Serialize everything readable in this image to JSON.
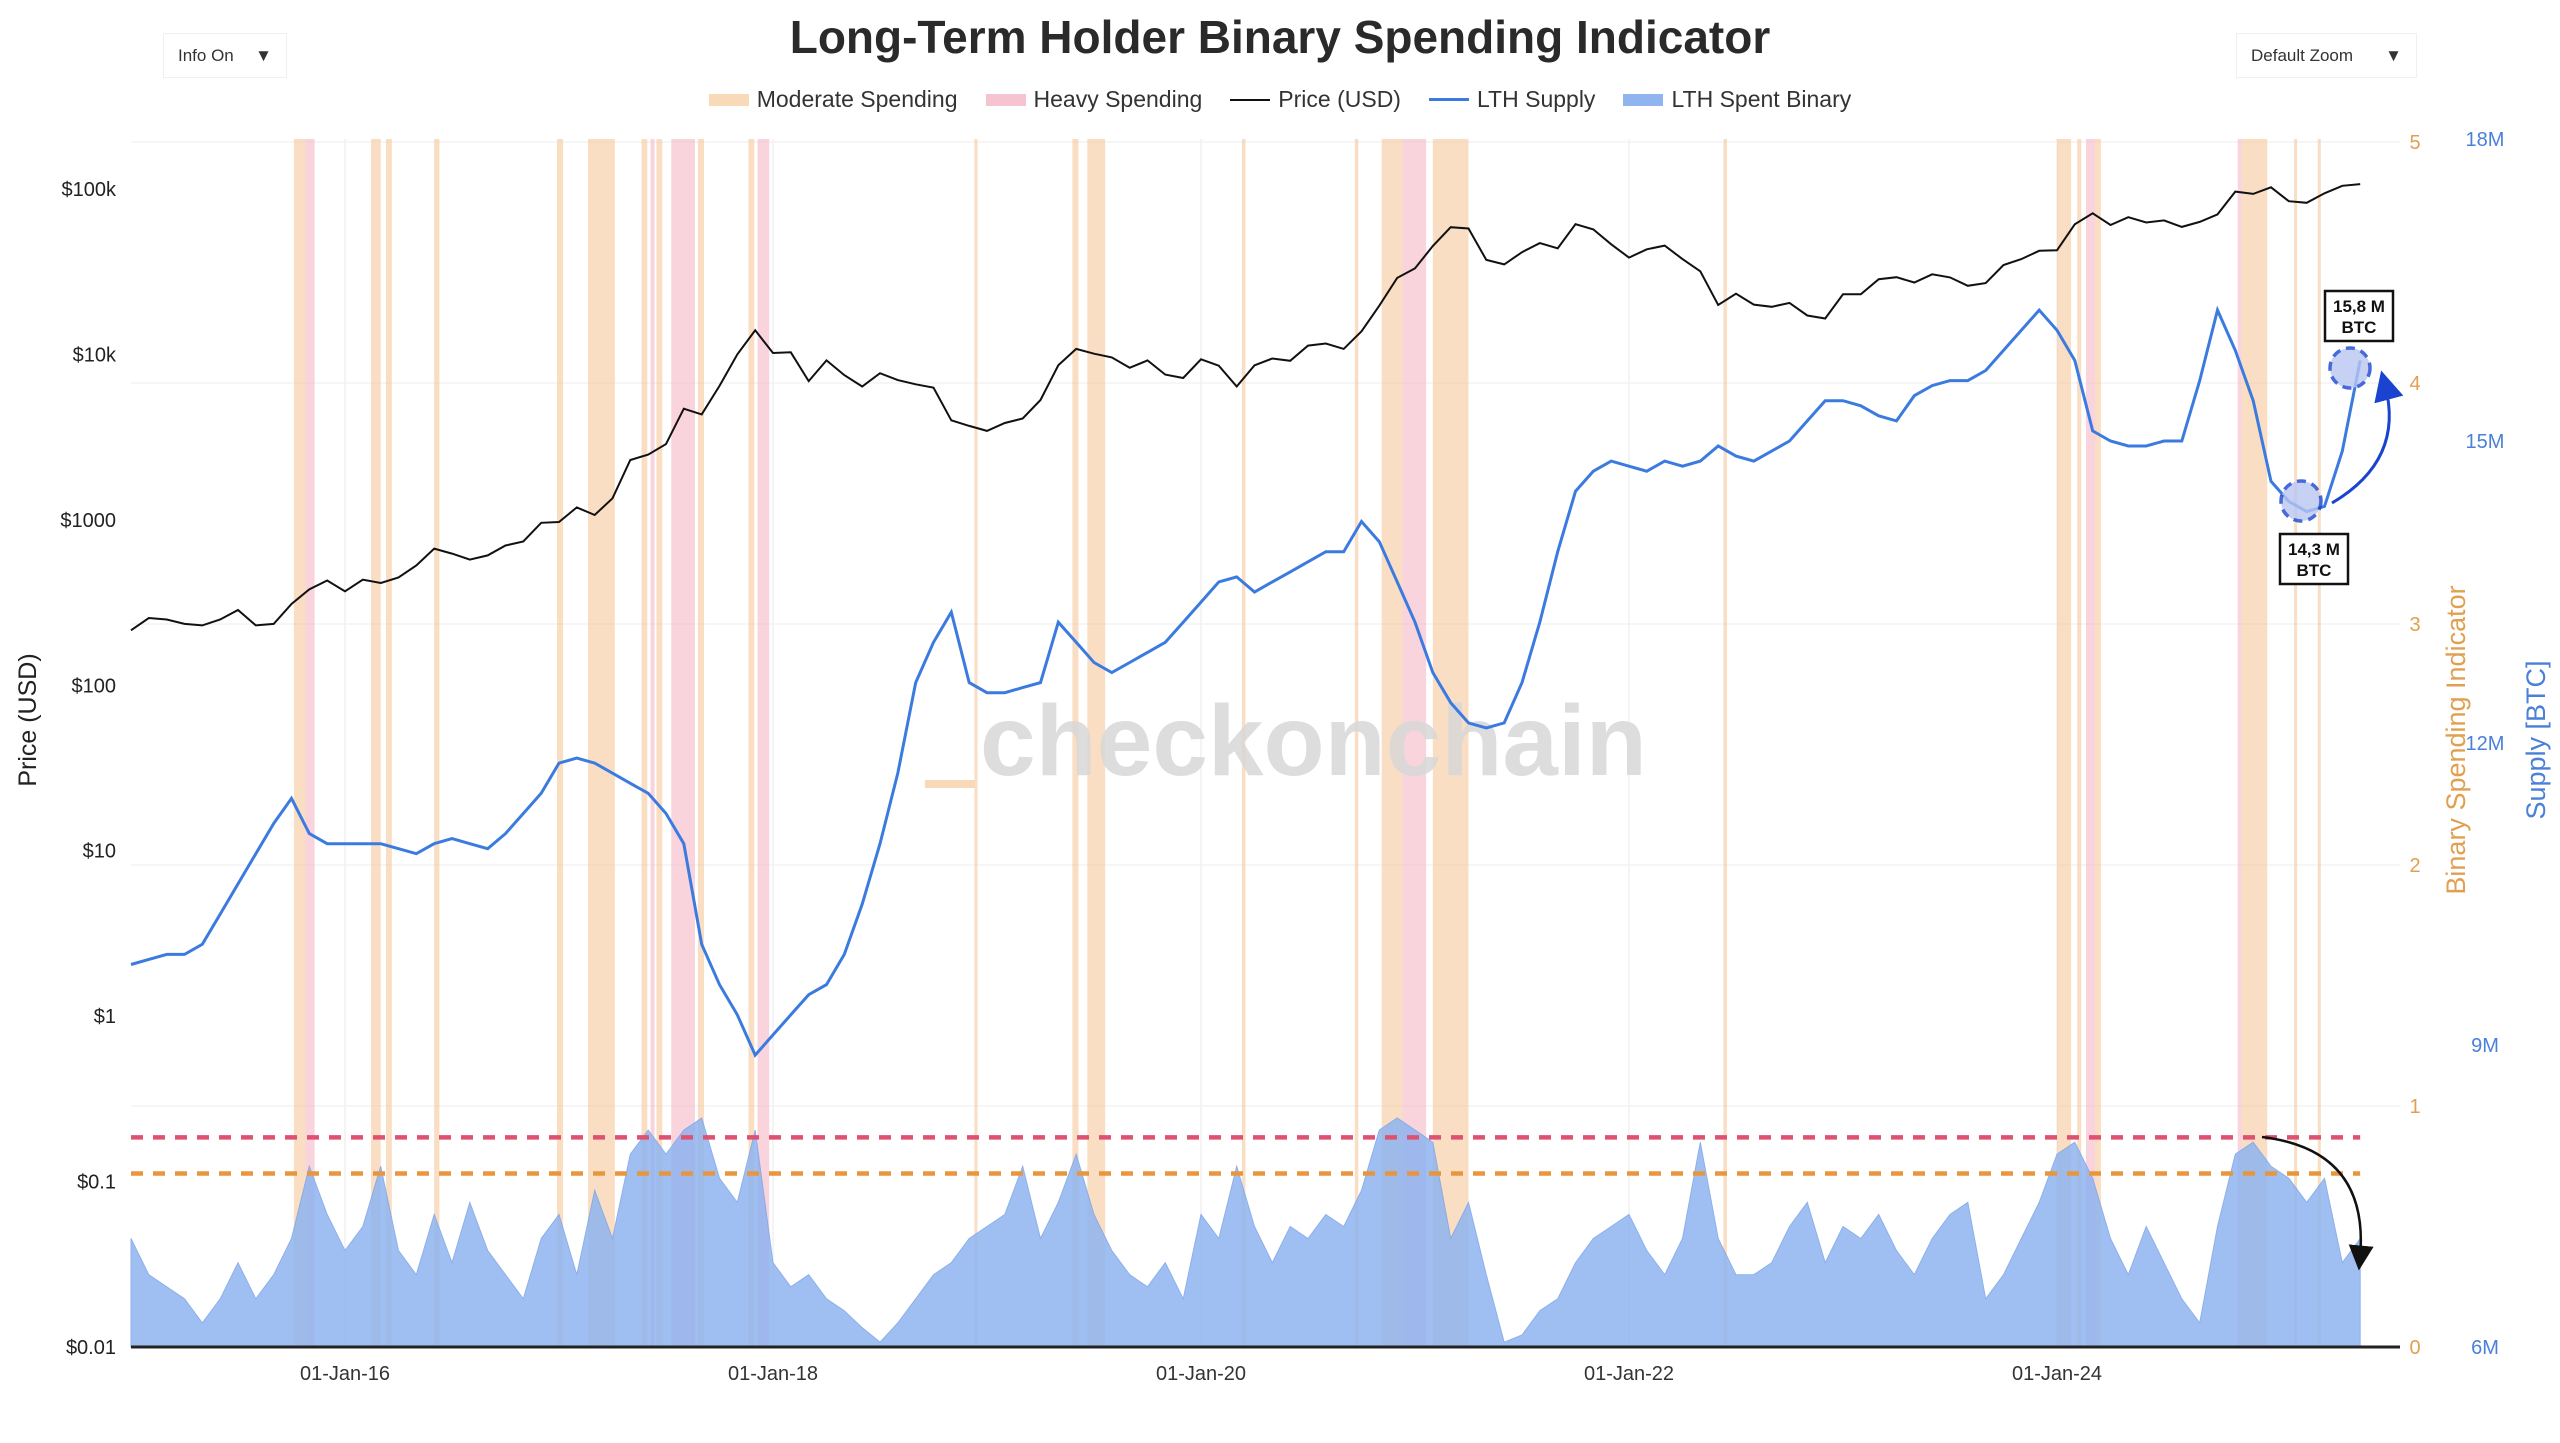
{
  "header": {
    "title": "Long-Term Holder Binary Spending Indicator",
    "info_dropdown": "Info On",
    "zoom_dropdown": "Default Zoom",
    "dropdown_icon": "caret-down-icon"
  },
  "chart_data": {
    "type": "line",
    "title": "Long-Term Holder Binary Spending Indicator",
    "legend": [
      {
        "name": "Moderate Spending",
        "color": "#f5c99a"
      },
      {
        "name": "Heavy Spending",
        "color": "#f4b6c4"
      },
      {
        "name": "Price (USD)",
        "color": "#111111"
      },
      {
        "name": "LTH Supply",
        "color": "#3b7be0"
      },
      {
        "name": "LTH Spent Binary",
        "color": "#8fb4f0"
      }
    ],
    "legend_placement": "top-center",
    "xlabel": "",
    "x_ticks": [
      "01-Jan-16",
      "01-Jan-18",
      "01-Jan-20",
      "01-Jan-22",
      "01-Jan-24"
    ],
    "x_tick_dates": [
      "2016-01",
      "2018-01",
      "2020-01",
      "2022-01",
      "2024-01"
    ],
    "x_range": [
      "2015-01",
      "2025-06"
    ],
    "y_left": {
      "label": "Price (USD)",
      "scale": "log",
      "range": [
        0.01,
        100000
      ],
      "ticks": [
        "$100k",
        "$10k",
        "$1000",
        "$100",
        "$10",
        "$1",
        "$0.1",
        "$0.01"
      ],
      "tick_values": [
        100000,
        10000,
        1000,
        100,
        10,
        1,
        0.1,
        0.01
      ]
    },
    "y_right_binary": {
      "label": "Binary Spending Indicator",
      "range": [
        0,
        5
      ],
      "ticks": [
        "5",
        "4",
        "3",
        "2",
        "1",
        "0"
      ],
      "tick_values": [
        5,
        4,
        3,
        2,
        1,
        0
      ],
      "color": "#e0a050"
    },
    "y_right_supply": {
      "label": "Supply [BTC]",
      "range": [
        6,
        18
      ],
      "unit": "M BTC",
      "ticks": [
        "18M",
        "15M",
        "12M",
        "9M",
        "6M"
      ],
      "tick_values": [
        18,
        15,
        12,
        9,
        6
      ],
      "color": "#4a80d8"
    },
    "start_month": "2015-01",
    "frequency": "monthly",
    "price_usd": [
      215,
      255,
      250,
      235,
      230,
      250,
      285,
      230,
      235,
      310,
      380,
      430,
      370,
      435,
      415,
      448,
      530,
      670,
      625,
      575,
      610,
      700,
      740,
      960,
      970,
      1190,
      1070,
      1350,
      2300,
      2480,
      2870,
      4700,
      4340,
      6450,
      10000,
      14000,
      10200,
      10300,
      6900,
      9200,
      7500,
      6400,
      7700,
      7000,
      6600,
      6300,
      4000,
      3700,
      3450,
      3850,
      4100,
      5300,
      8600,
      10800,
      10100,
      9600,
      8300,
      9200,
      7550,
      7200,
      9350,
      8550,
      6400,
      8600,
      9450,
      9150,
      11300,
      11650,
      10800,
      13800,
      19700,
      29000,
      33100,
      45200,
      58800,
      57700,
      37300,
      35000,
      41500,
      47100,
      43800,
      61300,
      57000,
      46300,
      38500,
      43200,
      45500,
      37700,
      31800,
      19900,
      23300,
      20000,
      19400,
      20500,
      17200,
      16500,
      23100,
      23100,
      28500,
      29300,
      27200,
      30500,
      29200,
      26000,
      27000,
      34700,
      37700,
      42300,
      42600,
      61200,
      71300,
      60600,
      67500,
      62700,
      64600,
      59000,
      63300,
      70200,
      96400,
      93400,
      102400,
      84400,
      82500,
      94200,
      104600,
      107100
    ],
    "lth_supply_m": [
      9.8,
      9.85,
      9.9,
      9.9,
      10.0,
      10.3,
      10.6,
      10.9,
      11.2,
      11.45,
      11.1,
      11.0,
      11.0,
      11.0,
      11.0,
      10.95,
      10.9,
      11.0,
      11.05,
      11.0,
      10.95,
      11.1,
      11.3,
      11.5,
      11.8,
      11.85,
      11.8,
      11.7,
      11.6,
      11.5,
      11.3,
      11.0,
      10.0,
      9.6,
      9.3,
      8.9,
      9.1,
      9.3,
      9.5,
      9.6,
      9.9,
      10.4,
      11.0,
      11.7,
      12.6,
      13.0,
      13.3,
      12.6,
      12.5,
      12.5,
      12.55,
      12.6,
      13.2,
      13.0,
      12.8,
      12.7,
      12.8,
      12.9,
      13.0,
      13.2,
      13.4,
      13.6,
      13.65,
      13.5,
      13.6,
      13.7,
      13.8,
      13.9,
      13.9,
      14.2,
      14.0,
      13.6,
      13.2,
      12.7,
      12.4,
      12.2,
      12.15,
      12.2,
      12.6,
      13.2,
      13.9,
      14.5,
      14.7,
      14.8,
      14.75,
      14.7,
      14.8,
      14.75,
      14.8,
      14.95,
      14.85,
      14.8,
      14.9,
      15.0,
      15.2,
      15.4,
      15.4,
      15.35,
      15.25,
      15.2,
      15.45,
      15.55,
      15.6,
      15.6,
      15.7,
      15.9,
      16.1,
      16.3,
      16.1,
      15.8,
      15.1,
      15.0,
      14.95,
      14.95,
      15.0,
      15.0,
      15.6,
      16.3,
      15.9,
      15.4,
      14.6,
      14.4,
      14.3,
      14.35,
      14.9,
      15.8
    ],
    "lth_spent_binary": [
      0.45,
      0.3,
      0.25,
      0.2,
      0.1,
      0.2,
      0.35,
      0.2,
      0.3,
      0.45,
      0.75,
      0.55,
      0.4,
      0.5,
      0.75,
      0.4,
      0.3,
      0.55,
      0.35,
      0.6,
      0.4,
      0.3,
      0.2,
      0.45,
      0.55,
      0.3,
      0.65,
      0.45,
      0.8,
      0.9,
      0.8,
      0.9,
      0.95,
      0.7,
      0.6,
      0.9,
      0.35,
      0.25,
      0.3,
      0.2,
      0.15,
      0.08,
      0.02,
      0.1,
      0.2,
      0.3,
      0.35,
      0.45,
      0.5,
      0.55,
      0.75,
      0.45,
      0.6,
      0.8,
      0.55,
      0.4,
      0.3,
      0.25,
      0.35,
      0.2,
      0.55,
      0.45,
      0.75,
      0.5,
      0.35,
      0.5,
      0.45,
      0.55,
      0.5,
      0.65,
      0.9,
      0.95,
      0.9,
      0.85,
      0.45,
      0.6,
      0.3,
      0.02,
      0.05,
      0.15,
      0.2,
      0.35,
      0.45,
      0.5,
      0.55,
      0.4,
      0.3,
      0.45,
      0.85,
      0.45,
      0.3,
      0.3,
      0.35,
      0.5,
      0.6,
      0.35,
      0.5,
      0.45,
      0.55,
      0.4,
      0.3,
      0.45,
      0.55,
      0.6,
      0.2,
      0.3,
      0.45,
      0.6,
      0.8,
      0.85,
      0.7,
      0.45,
      0.3,
      0.5,
      0.35,
      0.2,
      0.1,
      0.5,
      0.8,
      0.85,
      0.75,
      0.7,
      0.6,
      0.7,
      0.35,
      0.45
    ],
    "thresholds": [
      {
        "name": "heavy",
        "value": 0.87,
        "color": "#e05070",
        "style": "dashed"
      },
      {
        "name": "moderate",
        "value": 0.72,
        "color": "#e8963c",
        "style": "dashed"
      }
    ],
    "spending_bands": [
      {
        "type": "moderate",
        "start": "2015-10-05",
        "end": "2015-10-25"
      },
      {
        "type": "heavy",
        "start": "2015-10-25",
        "end": "2015-11-10"
      },
      {
        "type": "moderate",
        "start": "2016-02-15",
        "end": "2016-03-01"
      },
      {
        "type": "moderate",
        "start": "2016-03-10",
        "end": "2016-03-20"
      },
      {
        "type": "moderate",
        "start": "2016-06-01",
        "end": "2016-06-10"
      },
      {
        "type": "moderate",
        "start": "2016-12-28",
        "end": "2017-01-08"
      },
      {
        "type": "moderate",
        "start": "2017-02-20",
        "end": "2017-04-05"
      },
      {
        "type": "moderate",
        "start": "2017-05-20",
        "end": "2017-05-30"
      },
      {
        "type": "heavy",
        "start": "2017-06-05",
        "end": "2017-06-12"
      },
      {
        "type": "moderate",
        "start": "2017-06-15",
        "end": "2017-06-25"
      },
      {
        "type": "heavy",
        "start": "2017-07-10",
        "end": "2017-08-20"
      },
      {
        "type": "moderate",
        "start": "2017-08-25",
        "end": "2017-09-05"
      },
      {
        "type": "moderate",
        "start": "2017-11-20",
        "end": "2017-11-30"
      },
      {
        "type": "heavy",
        "start": "2017-12-05",
        "end": "2017-12-25"
      },
      {
        "type": "moderate",
        "start": "2018-12-10",
        "end": "2018-12-14"
      },
      {
        "type": "moderate",
        "start": "2019-05-25",
        "end": "2019-06-05"
      },
      {
        "type": "moderate",
        "start": "2019-06-20",
        "end": "2019-07-20"
      },
      {
        "type": "moderate",
        "start": "2020-03-10",
        "end": "2020-03-16"
      },
      {
        "type": "moderate",
        "start": "2020-09-20",
        "end": "2020-09-26"
      },
      {
        "type": "moderate",
        "start": "2020-11-05",
        "end": "2020-12-10"
      },
      {
        "type": "heavy",
        "start": "2020-12-10",
        "end": "2021-01-20"
      },
      {
        "type": "moderate",
        "start": "2021-02-01",
        "end": "2021-04-01"
      },
      {
        "type": "moderate",
        "start": "2022-06-10",
        "end": "2022-06-16"
      },
      {
        "type": "moderate",
        "start": "2024-01-01",
        "end": "2024-01-25"
      },
      {
        "type": "moderate",
        "start": "2024-02-05",
        "end": "2024-02-12"
      },
      {
        "type": "heavy",
        "start": "2024-02-20",
        "end": "2024-03-05"
      },
      {
        "type": "moderate",
        "start": "2024-03-05",
        "end": "2024-03-15"
      },
      {
        "type": "heavy",
        "start": "2024-11-05",
        "end": "2024-11-12"
      },
      {
        "type": "moderate",
        "start": "2024-11-12",
        "end": "2024-12-25"
      },
      {
        "type": "moderate",
        "start": "2025-02-10",
        "end": "2025-02-15"
      },
      {
        "type": "moderate",
        "start": "2025-03-20",
        "end": "2025-03-25"
      }
    ],
    "annotations": [
      {
        "text_line1": "15,8 M",
        "text_line2": "BTC",
        "date": "2025-06",
        "supply_m": 15.8
      },
      {
        "text_line1": "14,3 M",
        "text_line2": "BTC",
        "date": "2025-03",
        "supply_m": 14.3
      }
    ],
    "watermark": "checkonchain",
    "grid": true
  }
}
